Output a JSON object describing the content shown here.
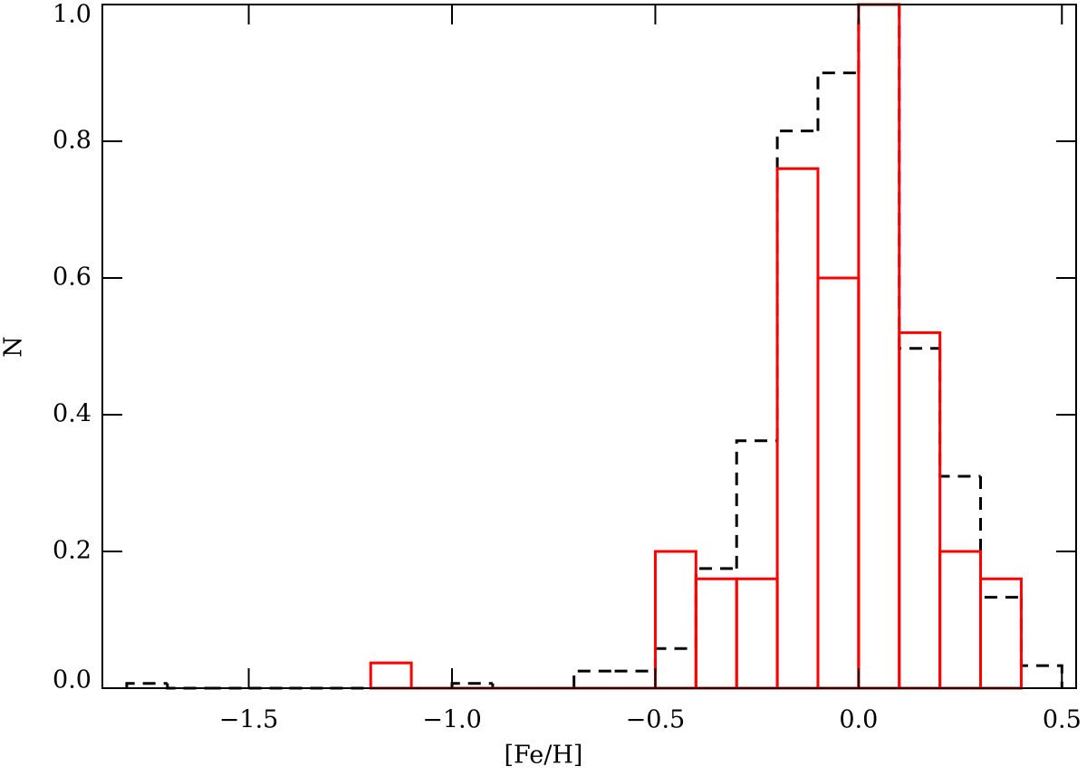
{
  "chart_data": {
    "type": "histogram",
    "xlabel": "[Fe/H]",
    "ylabel": "N",
    "xlim": [
      -1.86,
      0.535
    ],
    "ylim": [
      0,
      1.0
    ],
    "xticks": [
      {
        "value": -1.5,
        "label": "−1.5"
      },
      {
        "value": -1.0,
        "label": "−1.0"
      },
      {
        "value": -0.5,
        "label": "−0.5"
      },
      {
        "value": 0.0,
        "label": "0.0"
      },
      {
        "value": 0.5,
        "label": "0.5"
      }
    ],
    "yticks": [
      {
        "value": 0.0,
        "label": "0.0"
      },
      0.2,
      0.4,
      0.6,
      0.8,
      {
        "value": 1.0,
        "label": "1.0"
      }
    ],
    "series": [
      {
        "color": "#000000",
        "dashed": true,
        "bins": [
          -1.8,
          -1.7,
          -1.6,
          -1.5,
          -1.4,
          -1.3,
          -1.2,
          -1.1,
          -1.0,
          -0.9,
          -0.8,
          -0.7,
          -0.6,
          -0.5,
          -0.4,
          -0.3,
          -0.2,
          -0.1,
          0.0,
          0.1,
          0.2,
          0.3,
          0.4,
          0.5
        ],
        "values": [
          0.007,
          0,
          0,
          0,
          0,
          0,
          0,
          0,
          0.007,
          0,
          0,
          0.025,
          0.025,
          0.058,
          0.175,
          0.362,
          0.815,
          0.9,
          1.0,
          0.497,
          0.31,
          0.133,
          0.033
        ]
      },
      {
        "color": "#ff0000",
        "dashed": false,
        "bins": [
          -1.2,
          -1.1,
          -1.0,
          -0.9,
          -0.8,
          -0.7,
          -0.6,
          -0.5,
          -0.4,
          -0.3,
          -0.2,
          -0.1,
          0.0,
          0.1,
          0.2,
          0.3,
          0.4
        ],
        "values": [
          0.037,
          0,
          0,
          0,
          0,
          0,
          0,
          0.2,
          0.16,
          0.16,
          0.76,
          0.6,
          1.0,
          0.52,
          0.2,
          0.16
        ]
      }
    ]
  }
}
